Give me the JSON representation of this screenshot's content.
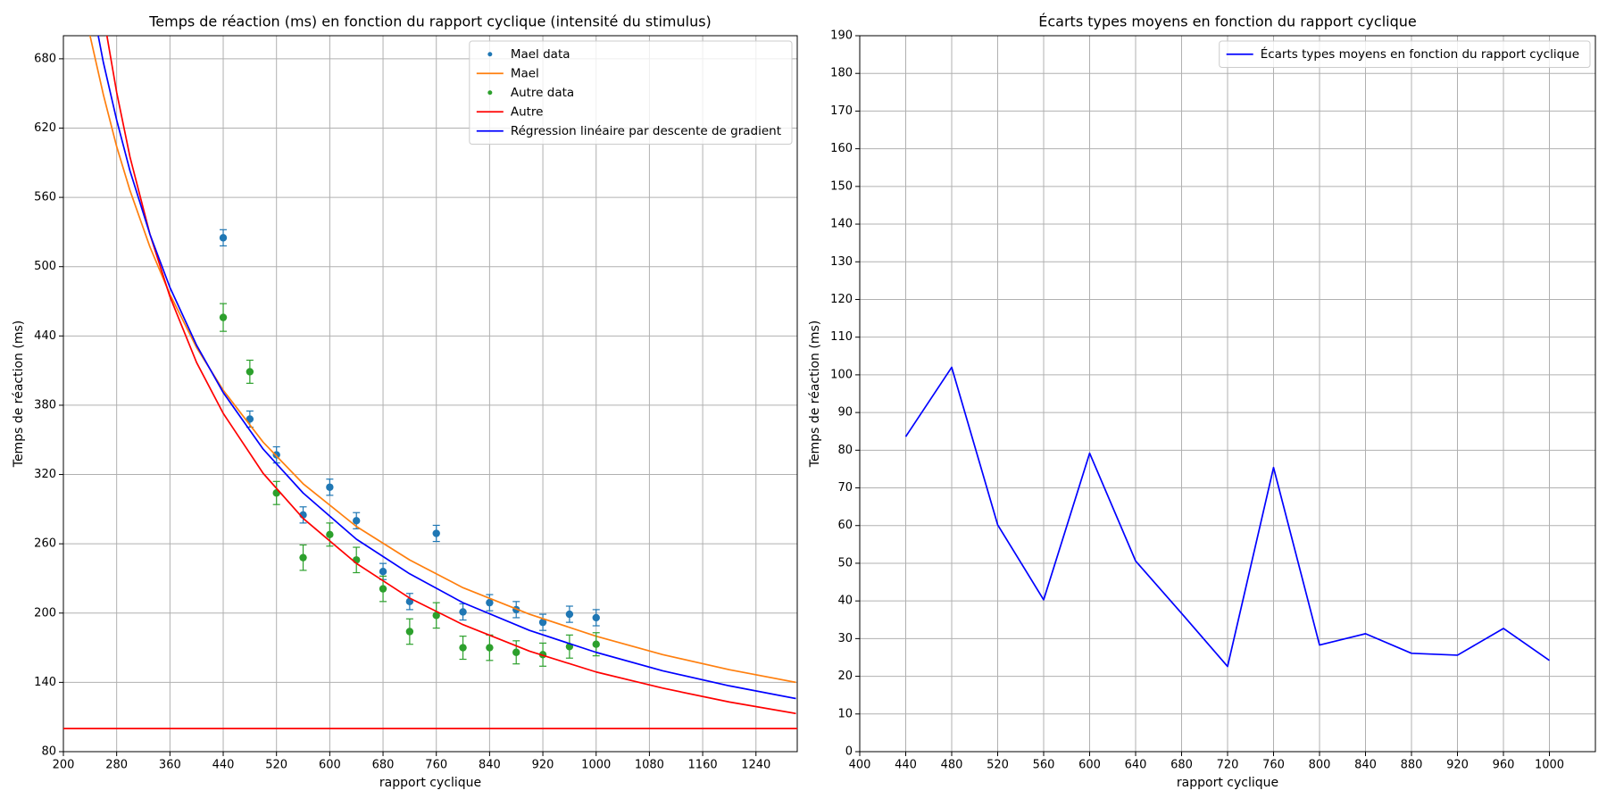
{
  "chart_data": [
    {
      "type": "line",
      "title": "Temps de réaction (ms) en fonction du rapport cyclique (intensité du stimulus)",
      "xlabel": "rapport cyclique",
      "ylabel": "Temps de réaction (ms)",
      "xlim": [
        200,
        1302
      ],
      "ylim": [
        80,
        700
      ],
      "xticks": [
        200,
        280,
        360,
        440,
        520,
        600,
        680,
        760,
        840,
        920,
        1000,
        1080,
        1160,
        1240
      ],
      "yticks": [
        80,
        140,
        200,
        260,
        320,
        380,
        440,
        500,
        560,
        620,
        680
      ],
      "grid": true,
      "legend": "upper right",
      "series": [
        {
          "name": "Mael data",
          "type": "errorbar",
          "color": "#1f77b4",
          "x": [
            440,
            480,
            520,
            560,
            600,
            640,
            680,
            720,
            760,
            800,
            840,
            880,
            920,
            960,
            1000
          ],
          "values": [
            525,
            368,
            337,
            285,
            309,
            280,
            236,
            210,
            269,
            201,
            209,
            203,
            192,
            199,
            196
          ],
          "errors": [
            7,
            7,
            7,
            7,
            7,
            7,
            7,
            7,
            7,
            7,
            7,
            7,
            7,
            7,
            7
          ]
        },
        {
          "name": "Mael",
          "type": "line",
          "color": "#ff7f0e",
          "x": [
            240,
            260,
            280,
            300,
            330,
            360,
            400,
            440,
            500,
            560,
            640,
            720,
            800,
            900,
            1000,
            1100,
            1200,
            1300
          ],
          "values": [
            700,
            649,
            604,
            566,
            517,
            476,
            430,
            393,
            348,
            312,
            275,
            246,
            222,
            199,
            180,
            164,
            151,
            140
          ]
        },
        {
          "name": "Autre data",
          "type": "errorbar",
          "color": "#2ca02c",
          "x": [
            440,
            480,
            520,
            560,
            600,
            640,
            680,
            720,
            760,
            800,
            840,
            880,
            920,
            960,
            1000
          ],
          "values": [
            456,
            409,
            304,
            248,
            268,
            246,
            221,
            184,
            198,
            170,
            170,
            166,
            164,
            171,
            173
          ],
          "errors": [
            12,
            10,
            10,
            11,
            10,
            11,
            11,
            11,
            11,
            10,
            11,
            10,
            10,
            10,
            10
          ]
        },
        {
          "name": "Autre",
          "type": "line",
          "color": "#ff0000",
          "x": [
            240,
            260,
            280,
            300,
            330,
            360,
            400,
            440,
            500,
            560,
            640,
            720,
            800,
            900,
            1000,
            1100,
            1200,
            1300
          ],
          "values": [
            800,
            718,
            651,
            595,
            528,
            474,
            417,
            373,
            321,
            282,
            243,
            213,
            190,
            167,
            149,
            135,
            123,
            113
          ]
        },
        {
          "name": "Régression linéaire par descente de gradient",
          "type": "line",
          "color": "#0000ff",
          "x": [
            240,
            260,
            280,
            300,
            330,
            360,
            400,
            440,
            500,
            560,
            640,
            720,
            800,
            900,
            1000,
            1100,
            1200,
            1300
          ],
          "values": [
            737,
            677,
            627,
            583,
            528,
            482,
            432,
            391,
            342,
            304,
            264,
            234,
            209,
            185,
            166,
            150,
            137,
            126
          ]
        }
      ],
      "hlines": [
        {
          "y": 100,
          "color": "#ff0000"
        }
      ]
    },
    {
      "type": "line",
      "title": "Écarts types moyens en fonction du rapport cyclique",
      "xlabel": "rapport cyclique",
      "ylabel": "Temps de réaction (ms)",
      "xlim": [
        400,
        1040
      ],
      "ylim": [
        0,
        190
      ],
      "xticks": [
        400,
        440,
        480,
        520,
        560,
        600,
        640,
        680,
        720,
        760,
        800,
        840,
        880,
        920,
        960,
        1000
      ],
      "yticks": [
        0,
        10,
        20,
        30,
        40,
        50,
        60,
        70,
        80,
        90,
        100,
        110,
        120,
        130,
        140,
        150,
        160,
        170,
        180,
        190
      ],
      "grid": true,
      "legend": "upper right",
      "series": [
        {
          "name": "Écarts types moyens en fonction du rapport cyclique",
          "type": "line",
          "color": "#0000ff",
          "x": [
            440,
            480,
            520,
            560,
            600,
            640,
            680,
            720,
            760,
            800,
            840,
            880,
            920,
            960,
            1000
          ],
          "values": [
            83.6,
            102,
            60.2,
            40.3,
            79.2,
            50.6,
            36.7,
            22.6,
            75.4,
            28.3,
            31.3,
            26.1,
            25.6,
            32.7,
            24.2
          ]
        }
      ]
    }
  ]
}
